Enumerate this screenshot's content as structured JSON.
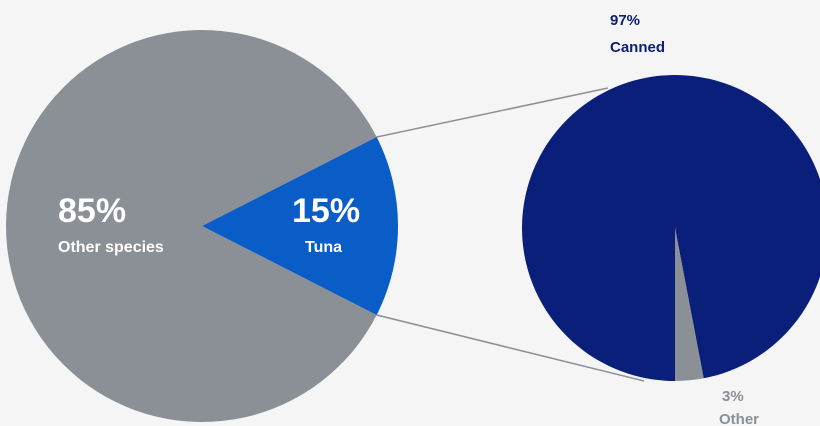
{
  "chart_data": [
    {
      "type": "pie",
      "slices": [
        {
          "label": "Other species",
          "value": 85,
          "value_label": "85%",
          "color": "#8b9097"
        },
        {
          "label": "Tuna",
          "value": 15,
          "value_label": "15%",
          "color": "#0a5cc7"
        }
      ]
    },
    {
      "type": "pie",
      "breakdown_of": "Tuna",
      "slices": [
        {
          "label": "Canned",
          "value": 97,
          "value_label": "97%",
          "color": "#0a1f7a"
        },
        {
          "label": "Other",
          "value": 3,
          "value_label": "3%",
          "color": "#8b9097"
        }
      ]
    }
  ],
  "colors": {
    "background": "#f5f5f5",
    "connector": "#8b9097",
    "canned_label": "#0a1f7a",
    "other_label": "#8b9097"
  }
}
